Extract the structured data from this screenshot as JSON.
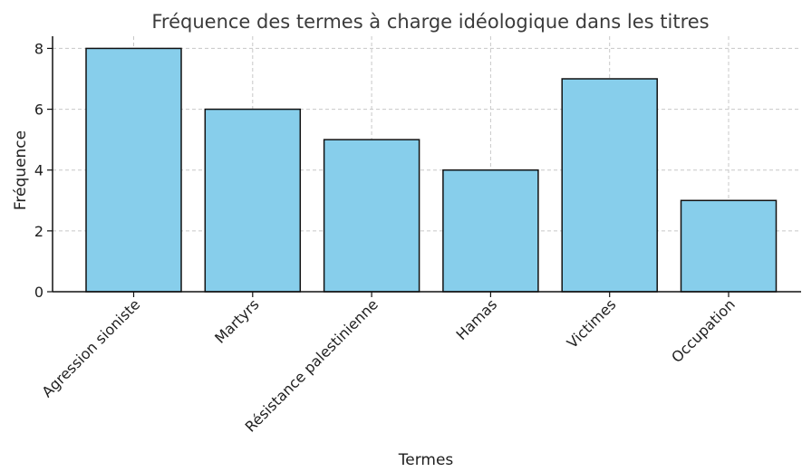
{
  "chart_data": {
    "type": "bar",
    "title": "Fréquence des termes à charge idéologique dans les titres",
    "xlabel": "Termes",
    "ylabel": "Fréquence",
    "categories": [
      "Agression sioniste",
      "Martyrs",
      "Résistance palestinienne",
      "Hamas",
      "Victimes",
      "Occupation"
    ],
    "values": [
      8,
      6,
      5,
      4,
      7,
      3
    ],
    "ylim": [
      0,
      8.4
    ],
    "yticks": [
      0,
      2,
      4,
      6,
      8
    ],
    "grid": true,
    "bar_color": "#87CEEB",
    "bar_edge_color": "#111111"
  }
}
